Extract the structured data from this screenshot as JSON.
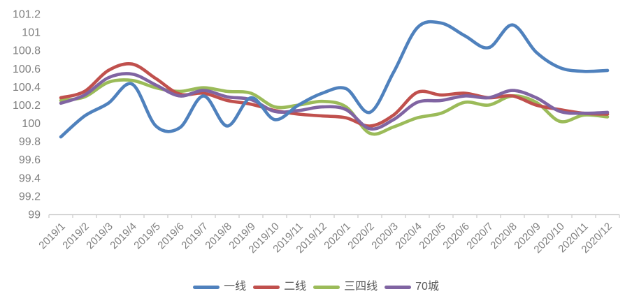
{
  "chart_data": {
    "type": "line",
    "title": "",
    "smooth": true,
    "grid": false,
    "legend_position": "bottom",
    "categories": [
      "2019/1",
      "2019/2",
      "2019/3",
      "2019/4",
      "2019/5",
      "2019/6",
      "2019/7",
      "2019/8",
      "2019/9",
      "2019/10",
      "2019/11",
      "2019/12",
      "2020/1",
      "2020/2",
      "2020/3",
      "2020/4",
      "2020/5",
      "2020/6",
      "2020/7",
      "2020/8",
      "2020/9",
      "2020/10",
      "2020/11",
      "2020/12"
    ],
    "series": [
      {
        "key": "tier1",
        "name": "一线",
        "color": "#4F81BD",
        "values": [
          99.85,
          100.08,
          100.22,
          100.43,
          99.97,
          99.95,
          100.3,
          99.97,
          100.28,
          100.04,
          100.2,
          100.33,
          100.38,
          100.12,
          100.56,
          101.05,
          101.1,
          100.96,
          100.83,
          101.08,
          100.78,
          100.61,
          100.57,
          100.58
        ]
      },
      {
        "key": "tier2",
        "name": "二线",
        "color": "#C0504D",
        "values": [
          100.28,
          100.35,
          100.58,
          100.65,
          100.49,
          100.32,
          100.33,
          100.25,
          100.21,
          100.14,
          100.1,
          100.08,
          100.06,
          99.97,
          100.09,
          100.34,
          100.31,
          100.33,
          100.28,
          100.3,
          100.2,
          100.15,
          100.11,
          100.1
        ]
      },
      {
        "key": "tier3-4",
        "name": "三四线",
        "color": "#9BBB59",
        "values": [
          100.25,
          100.29,
          100.45,
          100.47,
          100.39,
          100.35,
          100.39,
          100.35,
          100.33,
          100.18,
          100.2,
          100.24,
          100.18,
          99.89,
          99.96,
          100.06,
          100.11,
          100.23,
          100.2,
          100.3,
          100.23,
          100.02,
          100.09,
          100.07
        ]
      },
      {
        "key": "cities-70",
        "name": "70城",
        "color": "#8064A2",
        "values": [
          100.22,
          100.31,
          100.5,
          100.54,
          100.42,
          100.3,
          100.36,
          100.29,
          100.26,
          100.13,
          100.14,
          100.18,
          100.15,
          99.94,
          100.04,
          100.23,
          100.25,
          100.3,
          100.28,
          100.36,
          100.28,
          100.13,
          100.11,
          100.12
        ]
      }
    ],
    "xlabel": "",
    "ylabel": "",
    "ylim": [
      99,
      101.2
    ],
    "y_tick_step": 0.2,
    "y_tick_labels": [
      "99",
      "99.2",
      "99.4",
      "99.6",
      "99.8",
      "100",
      "100.2",
      "100.4",
      "100.6",
      "100.8",
      "101",
      "101.2"
    ],
    "x_tick_rotation_deg": -45,
    "axis_text_color": "#808080",
    "legend_text_color": "#595959",
    "axis_line_color": "#C9C9C9"
  }
}
